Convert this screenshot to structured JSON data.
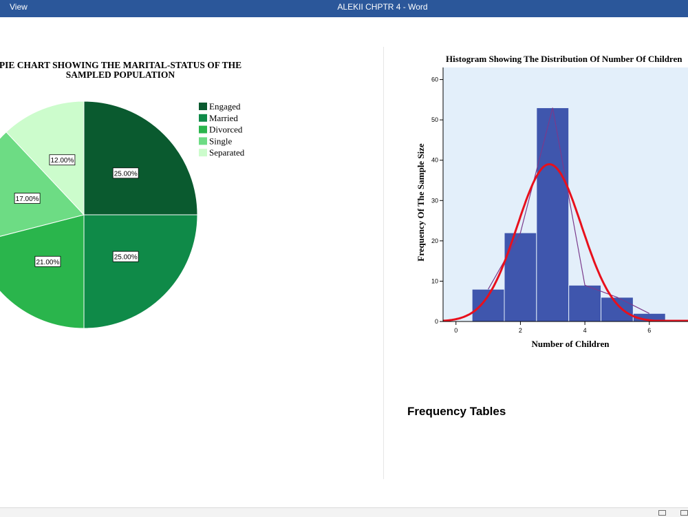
{
  "titlebar": {
    "menu_view": "View",
    "document_title": "ALEKII CHPTR 4 - Word",
    "color": "#2b579a"
  },
  "document": {
    "heading_frequency_tables": "Frequency Tables"
  },
  "statusbar": {
    "icons": [
      "read-mode-icon",
      "print-layout-icon"
    ]
  },
  "chart_data": [
    {
      "type": "pie",
      "title": "PIE CHART SHOWING THE MARITAL-STATUS OF THE SAMPLED POPULATION",
      "title_lines": [
        "PIE CHART SHOWING THE MARITAL-STATUS OF THE",
        "SAMPLED POPULATION"
      ],
      "legend_position": "right",
      "slices": [
        {
          "label": "Engaged",
          "value": 25.0,
          "display": "25.00%",
          "color": "#0a5a2f"
        },
        {
          "label": "Married",
          "value": 25.0,
          "display": "25.00%",
          "color": "#0f8a48"
        },
        {
          "label": "Divorced",
          "value": 21.0,
          "display": "21.00%",
          "color": "#2ab54c"
        },
        {
          "label": "Single",
          "value": 17.0,
          "display": "17.00%",
          "color": "#6ddc84"
        },
        {
          "label": "Separated",
          "value": 12.0,
          "display": "12.00%",
          "color": "#ccfccc"
        }
      ]
    },
    {
      "type": "bar",
      "subtype": "histogram",
      "title": "Histogram Showing The Distribution Of Number Of Children",
      "xlabel": "Number of Children",
      "ylabel": "Frequency Of The Sample Size",
      "xlim": [
        -0.4,
        7.2
      ],
      "ylim": [
        0,
        63
      ],
      "xticks": [
        0,
        2,
        4,
        6
      ],
      "yticks": [
        0,
        10,
        20,
        30,
        40,
        50,
        60
      ],
      "background": "#e3effa",
      "bar_color": "#3f56ad",
      "bins": [
        {
          "from": 0.5,
          "to": 1.5,
          "count": 8
        },
        {
          "from": 1.5,
          "to": 2.5,
          "count": 22
        },
        {
          "from": 2.5,
          "to": 3.5,
          "count": 53
        },
        {
          "from": 3.5,
          "to": 4.5,
          "count": 9
        },
        {
          "from": 4.5,
          "to": 5.5,
          "count": 6
        },
        {
          "from": 5.5,
          "to": 6.5,
          "count": 2
        }
      ],
      "normal_curve": {
        "mean": 2.9,
        "sd": 1.0,
        "peak": 39,
        "color": "#e8101c"
      },
      "frequency_polygon": {
        "color": "#7a3a8c",
        "points": [
          [
            1,
            8
          ],
          [
            2,
            22
          ],
          [
            3,
            53
          ],
          [
            4,
            9
          ],
          [
            5,
            6
          ],
          [
            6,
            2
          ]
        ]
      }
    }
  ]
}
